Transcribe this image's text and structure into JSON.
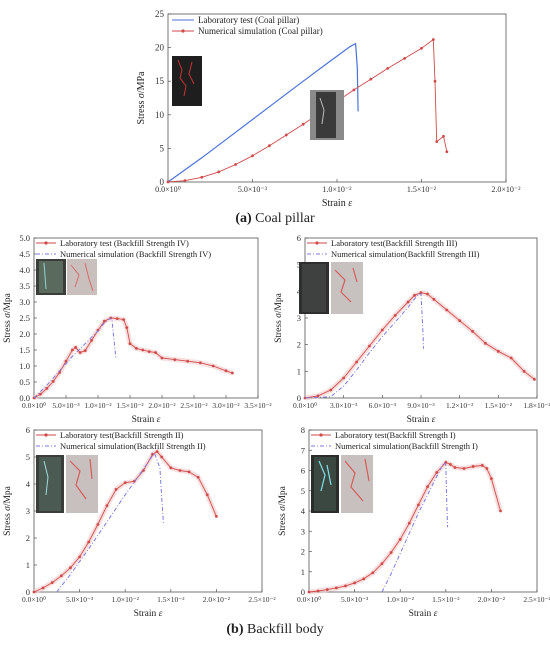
{
  "captions": {
    "a_letter": "(a)",
    "a_text": " Coal pillar",
    "b_letter": "(b)",
    "b_text": " Backfill body"
  },
  "colors": {
    "lab_coal": "#4a72d9",
    "lab_backfill": "#d04a4a",
    "num_coal": "#d04a4a",
    "num_backfill": "#7a7ae0",
    "shade": "#f4c9c9"
  },
  "chart_data": [
    {
      "id": "coal",
      "type": "line",
      "xlabel_pre": "Strain ",
      "xlabel_sym": "ε",
      "ylabel_pre": "Stress ",
      "ylabel_sym": "σ",
      "ylabel_post": "/MPa",
      "xlim": [
        0,
        0.02
      ],
      "ylim": [
        0,
        25
      ],
      "xticks": [
        "0.0×10⁰",
        "5.0×10⁻³",
        "1.0×10⁻²",
        "1.5×10⁻²",
        "2.0×10⁻²"
      ],
      "xtick_values": [
        0,
        0.005,
        0.01,
        0.015,
        0.02
      ],
      "yticks": [
        "0",
        "5",
        "10",
        "15",
        "20",
        "25"
      ],
      "ytick_values": [
        0,
        5,
        10,
        15,
        20,
        25
      ],
      "legend_pos": "top-left",
      "series": [
        {
          "name": "Laboratory test (Coal pillar)",
          "role": "lab",
          "style": "solid-blue",
          "x": [
            0,
            0.002,
            0.004,
            0.006,
            0.008,
            0.0095,
            0.0108,
            0.0111,
            0.0112,
            0.01125
          ],
          "y": [
            0,
            3.6,
            7.4,
            11.2,
            15.0,
            17.8,
            20.2,
            20.6,
            17.0,
            10.5
          ]
        },
        {
          "name": "Numerical simulation (Coal pillar)",
          "role": "num",
          "style": "red-markers",
          "x": [
            0,
            0.001,
            0.002,
            0.003,
            0.004,
            0.005,
            0.006,
            0.007,
            0.008,
            0.009,
            0.01,
            0.011,
            0.012,
            0.013,
            0.014,
            0.015,
            0.0157,
            0.0158,
            0.0159,
            0.0163,
            0.0165
          ],
          "y": [
            0,
            0.2,
            0.7,
            1.5,
            2.6,
            3.9,
            5.4,
            7.0,
            8.6,
            10.3,
            12.0,
            13.7,
            15.3,
            16.9,
            18.4,
            19.9,
            21.2,
            15.0,
            6.0,
            6.8,
            4.5
          ]
        }
      ]
    },
    {
      "id": "bf4",
      "type": "line",
      "xlabel_pre": "Strain ",
      "xlabel_sym": "ε",
      "ylabel_pre": "Stress ",
      "ylabel_sym": "σ",
      "ylabel_post": "/Mpa",
      "xlim": [
        0,
        0.035
      ],
      "ylim": [
        0,
        5
      ],
      "xticks": [
        "0.0×10⁰",
        "5.0×10⁻³",
        "1.0×10⁻²",
        "1.5×10⁻²",
        "2.0×10⁻²",
        "2.5×10⁻²",
        "3.0×10⁻²",
        "3.5×10⁻²"
      ],
      "xtick_values": [
        0,
        0.005,
        0.01,
        0.015,
        0.02,
        0.025,
        0.03,
        0.035
      ],
      "yticks": [
        "0.0",
        "0.5",
        "1.0",
        "1.5",
        "2.0",
        "2.5",
        "3.0",
        "3.5",
        "4.0",
        "4.5",
        "5.0"
      ],
      "ytick_values": [
        0,
        0.5,
        1.0,
        1.5,
        2.0,
        2.5,
        3.0,
        3.5,
        4.0,
        4.5,
        5.0
      ],
      "legend_pos": "top-left",
      "series": [
        {
          "name": "Laboratory test (Backfill Strength IV)",
          "role": "lab",
          "style": "red-markers",
          "x": [
            0,
            0.001,
            0.002,
            0.003,
            0.004,
            0.005,
            0.006,
            0.0065,
            0.0072,
            0.008,
            0.009,
            0.01,
            0.011,
            0.012,
            0.013,
            0.014,
            0.0145,
            0.015,
            0.016,
            0.017,
            0.018,
            0.019,
            0.02,
            0.022,
            0.024,
            0.026,
            0.028,
            0.03,
            0.031
          ],
          "y": [
            0,
            0.12,
            0.3,
            0.52,
            0.8,
            1.15,
            1.5,
            1.58,
            1.42,
            1.48,
            1.8,
            2.12,
            2.4,
            2.5,
            2.48,
            2.45,
            2.2,
            1.7,
            1.55,
            1.5,
            1.45,
            1.42,
            1.25,
            1.2,
            1.15,
            1.1,
            1.0,
            0.85,
            0.78
          ]
        },
        {
          "name": "Numerical simulation (Backfill Strength IV)",
          "role": "num",
          "style": "blue-dashdot",
          "x": [
            0,
            0.002,
            0.004,
            0.006,
            0.008,
            0.01,
            0.011,
            0.012,
            0.0122,
            0.0125,
            0.0128
          ],
          "y": [
            0,
            0.4,
            0.85,
            1.3,
            1.7,
            2.1,
            2.35,
            2.5,
            2.4,
            1.8,
            1.25
          ]
        }
      ]
    },
    {
      "id": "bf3",
      "type": "line",
      "xlabel_pre": "Strain ",
      "xlabel_sym": "ε",
      "ylabel_pre": "Stress ",
      "ylabel_sym": "σ",
      "ylabel_post": "/Mpa",
      "xlim": [
        0,
        0.018
      ],
      "ylim": [
        0,
        6
      ],
      "xticks": [
        "0.0×10⁰",
        "3.0×10⁻³",
        "6.0×10⁻³",
        "9.0×10⁻³",
        "1.2×10⁻²",
        "1.5×10⁻²",
        "1.8×10⁻²"
      ],
      "xtick_values": [
        0,
        0.003,
        0.006,
        0.009,
        0.012,
        0.015,
        0.018
      ],
      "yticks": [
        "0",
        "1",
        "2",
        "3",
        "4",
        "5",
        "6"
      ],
      "ytick_values": [
        0,
        1,
        2,
        3,
        4,
        5,
        6
      ],
      "legend_pos": "top-left",
      "series": [
        {
          "name": "Laboratory test(Backfill Strength III)",
          "role": "lab",
          "style": "red-markers",
          "x": [
            0,
            0.001,
            0.002,
            0.003,
            0.004,
            0.005,
            0.006,
            0.007,
            0.008,
            0.0085,
            0.009,
            0.0095,
            0.01,
            0.011,
            0.012,
            0.013,
            0.014,
            0.015,
            0.016,
            0.017,
            0.0178
          ],
          "y": [
            0,
            0.08,
            0.3,
            0.75,
            1.35,
            1.95,
            2.55,
            3.1,
            3.6,
            3.85,
            3.95,
            3.9,
            3.7,
            3.3,
            2.9,
            2.5,
            2.05,
            1.75,
            1.5,
            1.0,
            0.7
          ]
        },
        {
          "name": "Numerical simulation(Backfill Strength III)",
          "role": "num",
          "style": "blue-dashdot",
          "x": [
            0,
            0.002,
            0.003,
            0.004,
            0.005,
            0.006,
            0.007,
            0.008,
            0.0088,
            0.009,
            0.0091,
            0.0092
          ],
          "y": [
            0,
            0.05,
            0.45,
            1.05,
            1.7,
            2.3,
            2.85,
            3.4,
            3.9,
            3.9,
            3.0,
            1.85
          ]
        }
      ]
    },
    {
      "id": "bf2",
      "type": "line",
      "xlabel_pre": "Strain ",
      "xlabel_sym": "ε",
      "ylabel_pre": "Stress ",
      "ylabel_sym": "σ",
      "ylabel_post": "/Mpa",
      "xlim": [
        0,
        0.025
      ],
      "ylim": [
        0,
        6
      ],
      "xticks": [
        "0.0×10⁰",
        "5.0×10⁻³",
        "1.0×10⁻²",
        "1.5×10⁻²",
        "2.0×10⁻²",
        "2.5×10⁻²"
      ],
      "xtick_values": [
        0,
        0.005,
        0.01,
        0.015,
        0.02,
        0.025
      ],
      "yticks": [
        "0",
        "1",
        "2",
        "3",
        "4",
        "5",
        "6"
      ],
      "ytick_values": [
        0,
        1,
        2,
        3,
        4,
        5,
        6
      ],
      "legend_pos": "top-left",
      "series": [
        {
          "name": "Laboratory test(Backfill Strength II)",
          "role": "lab",
          "style": "red-markers",
          "x": [
            0,
            0.001,
            0.002,
            0.003,
            0.004,
            0.005,
            0.006,
            0.007,
            0.008,
            0.009,
            0.01,
            0.011,
            0.012,
            0.013,
            0.0135,
            0.014,
            0.015,
            0.016,
            0.017,
            0.018,
            0.019,
            0.02
          ],
          "y": [
            0,
            0.15,
            0.35,
            0.6,
            0.9,
            1.3,
            1.85,
            2.5,
            3.2,
            3.8,
            4.05,
            4.1,
            4.5,
            5.1,
            5.2,
            5.0,
            4.6,
            4.5,
            4.45,
            4.25,
            3.6,
            2.8
          ]
        },
        {
          "name": "Numerical simulation(Backfill Strength II)",
          "role": "num",
          "style": "blue-dashdot",
          "x": [
            0.0025,
            0.004,
            0.006,
            0.008,
            0.01,
            0.012,
            0.0132,
            0.0138,
            0.014,
            0.0142
          ],
          "y": [
            0,
            0.65,
            1.6,
            2.6,
            3.6,
            4.55,
            5.15,
            4.6,
            3.5,
            2.5
          ]
        }
      ]
    },
    {
      "id": "bf1",
      "type": "line",
      "xlabel_pre": "Strain ",
      "xlabel_sym": "ε",
      "ylabel_pre": "Stress ",
      "ylabel_sym": "σ",
      "ylabel_post": "/Mpa",
      "xlim": [
        0,
        0.025
      ],
      "ylim": [
        0,
        8
      ],
      "xticks": [
        "0.0×10⁰",
        "5.0×10⁻³",
        "1.0×10⁻²",
        "1.5×10⁻²",
        "2.0×10⁻²",
        "2.5×10⁻²"
      ],
      "xtick_values": [
        0,
        0.005,
        0.01,
        0.015,
        0.02,
        0.025
      ],
      "yticks": [
        "0",
        "1",
        "2",
        "3",
        "4",
        "5",
        "6",
        "7",
        "8"
      ],
      "ytick_values": [
        0,
        1,
        2,
        3,
        4,
        5,
        6,
        7,
        8
      ],
      "legend_pos": "top-left",
      "series": [
        {
          "name": "Laboratory test(Backfill Strength I)",
          "role": "lab",
          "style": "red-markers",
          "x": [
            0,
            0.001,
            0.002,
            0.003,
            0.004,
            0.005,
            0.006,
            0.007,
            0.008,
            0.009,
            0.01,
            0.011,
            0.012,
            0.013,
            0.014,
            0.015,
            0.0155,
            0.016,
            0.017,
            0.018,
            0.019,
            0.0195,
            0.02,
            0.021
          ],
          "y": [
            0,
            0.05,
            0.12,
            0.2,
            0.3,
            0.45,
            0.65,
            0.95,
            1.4,
            1.95,
            2.6,
            3.4,
            4.3,
            5.2,
            5.9,
            6.4,
            6.3,
            6.15,
            6.1,
            6.2,
            6.25,
            6.1,
            5.6,
            4.0
          ]
        },
        {
          "name": "Numerical simulation(Backfill Strength I)",
          "role": "num",
          "style": "blue-dashdot",
          "x": [
            0.008,
            0.009,
            0.01,
            0.011,
            0.012,
            0.013,
            0.014,
            0.0148,
            0.015,
            0.0151,
            0.0152
          ],
          "y": [
            0,
            0.9,
            1.9,
            2.9,
            3.9,
            4.8,
            5.7,
            6.4,
            6.3,
            4.5,
            3.2
          ]
        }
      ]
    }
  ]
}
